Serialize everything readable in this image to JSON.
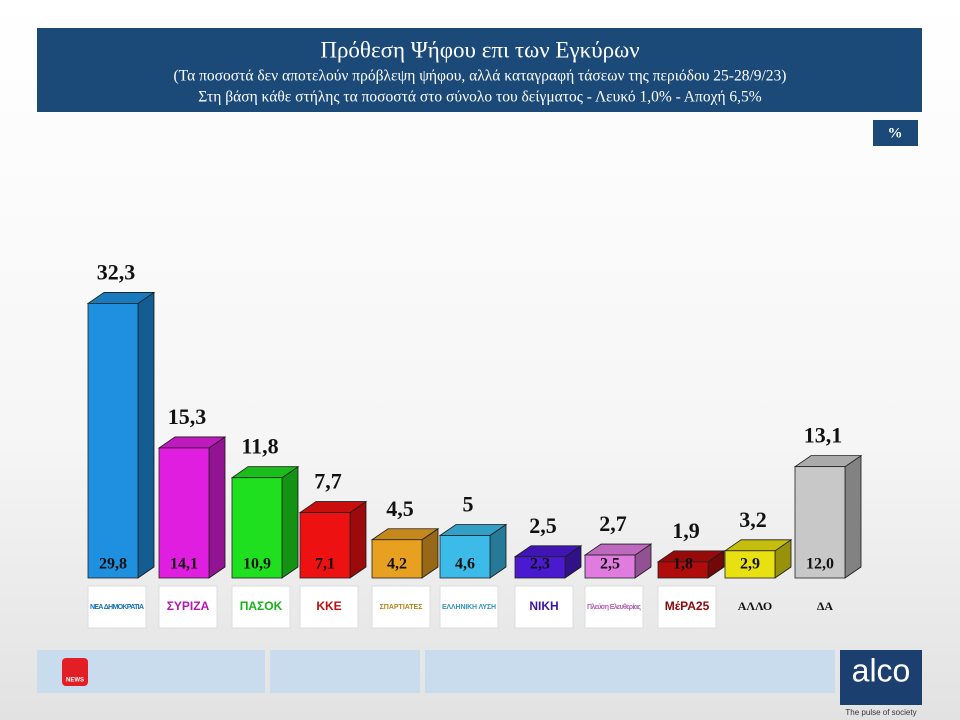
{
  "header": {
    "title": "Πρόθεση Ψήφου επι των Εγκύρων",
    "subtitle": "(Τα ποσοστά δεν αποτελούν πρόβλεψη ψήφου, αλλά καταγραφή τάσεων της περιόδου  25-28/9/23)",
    "note": "Στη βάση κάθε στήλης τα ποσοστά στο σύνολο του δείγματος - Λευκό 1,0% - Αποχή 6,5%",
    "unit": "%"
  },
  "chart_data": {
    "type": "bar3d",
    "categories": [
      "ΝΕΑ ΔΗΜΟΚΡΑΤΙΑ",
      "ΣΥΡΙΖΑ",
      "ΠΑΣΟΚ",
      "ΚΚΕ",
      "ΣΠΑΡΤΙΑΤΕΣ",
      "ΕΛΛΗΝΙΚΗ ΛΥΣΗ",
      "ΝΙΚΗ",
      "Πλεύση Ελευθερίας",
      "ΜέΡΑ25",
      "ΑΛΛΟ",
      "ΔΑ"
    ],
    "series": [
      {
        "values": [
          32.3,
          15.3,
          11.8,
          7.7,
          4.5,
          5,
          2.5,
          2.7,
          1.9,
          3.2,
          13.1
        ],
        "value_labels": [
          "32,3",
          "15,3",
          "11,8",
          "7,7",
          "4,5",
          "5",
          "2,5",
          "2,7",
          "1,9",
          "3,2",
          "13,1"
        ],
        "colors": [
          "#1f8fe0",
          "#e01ee0",
          "#1fe01f",
          "#ee1111",
          "#e8a020",
          "#3cbbe8",
          "#4a1ad0",
          "#e07ce0",
          "#b00c0c",
          "#e8e010",
          "#c8c8c8"
        ]
      },
      {
        "values": [
          29.8,
          14.1,
          10.9,
          7.1,
          4.2,
          4.6,
          2.3,
          2.5,
          1.8,
          2.9,
          12.0
        ],
        "value_labels": [
          "29,8",
          "14,1",
          "10,9",
          "7,1",
          "4,2",
          "4,6",
          "2,3",
          "2,5",
          "1,8",
          "2,9",
          "12,0"
        ]
      }
    ]
  },
  "footer": {
    "brand": "alco",
    "tagline": "The pulse of society",
    "news": "NEWS"
  }
}
